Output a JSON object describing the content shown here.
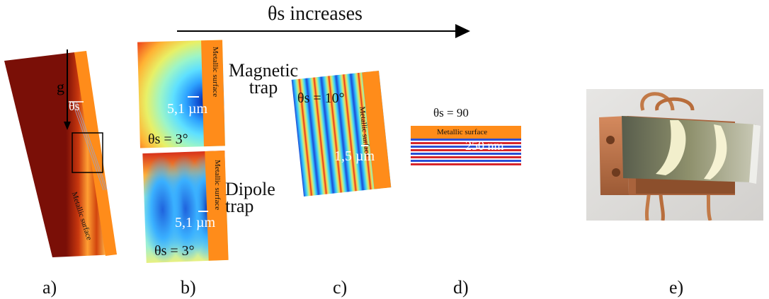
{
  "header": {
    "arrow_label": "θs increases"
  },
  "panel_a": {
    "label": "a)",
    "gravity_label": "g",
    "angle_label": "θs",
    "surface_label": "Metallic surface",
    "colors": {
      "field": "#7a0f07",
      "fringe": "#ffb347",
      "surface": "#ff8c1a"
    }
  },
  "panel_b": {
    "label": "b)",
    "magnetic": {
      "caption": "Magnetic trap",
      "scale": "5,1 µm",
      "angle": "θs = 3°",
      "surface_label": "Metallic surface"
    },
    "dipole": {
      "caption": "Dipole trap",
      "scale": "5,1 µm",
      "angle": "θs = 3°",
      "surface_label": "Metallic surface"
    }
  },
  "panel_c": {
    "label": "c)",
    "angle": "θs = 10°",
    "scale": "1,5 µm",
    "surface_label": "Metallic surface"
  },
  "panel_d": {
    "label": "d)",
    "angle": "θs = 90",
    "surface_label": "Metallic surface",
    "scale": "250 nm",
    "colors": {
      "surface": "#ff8c1a",
      "red": "#d7262b",
      "blue": "#2a4fd6"
    }
  },
  "panel_e": {
    "label": "e)"
  }
}
